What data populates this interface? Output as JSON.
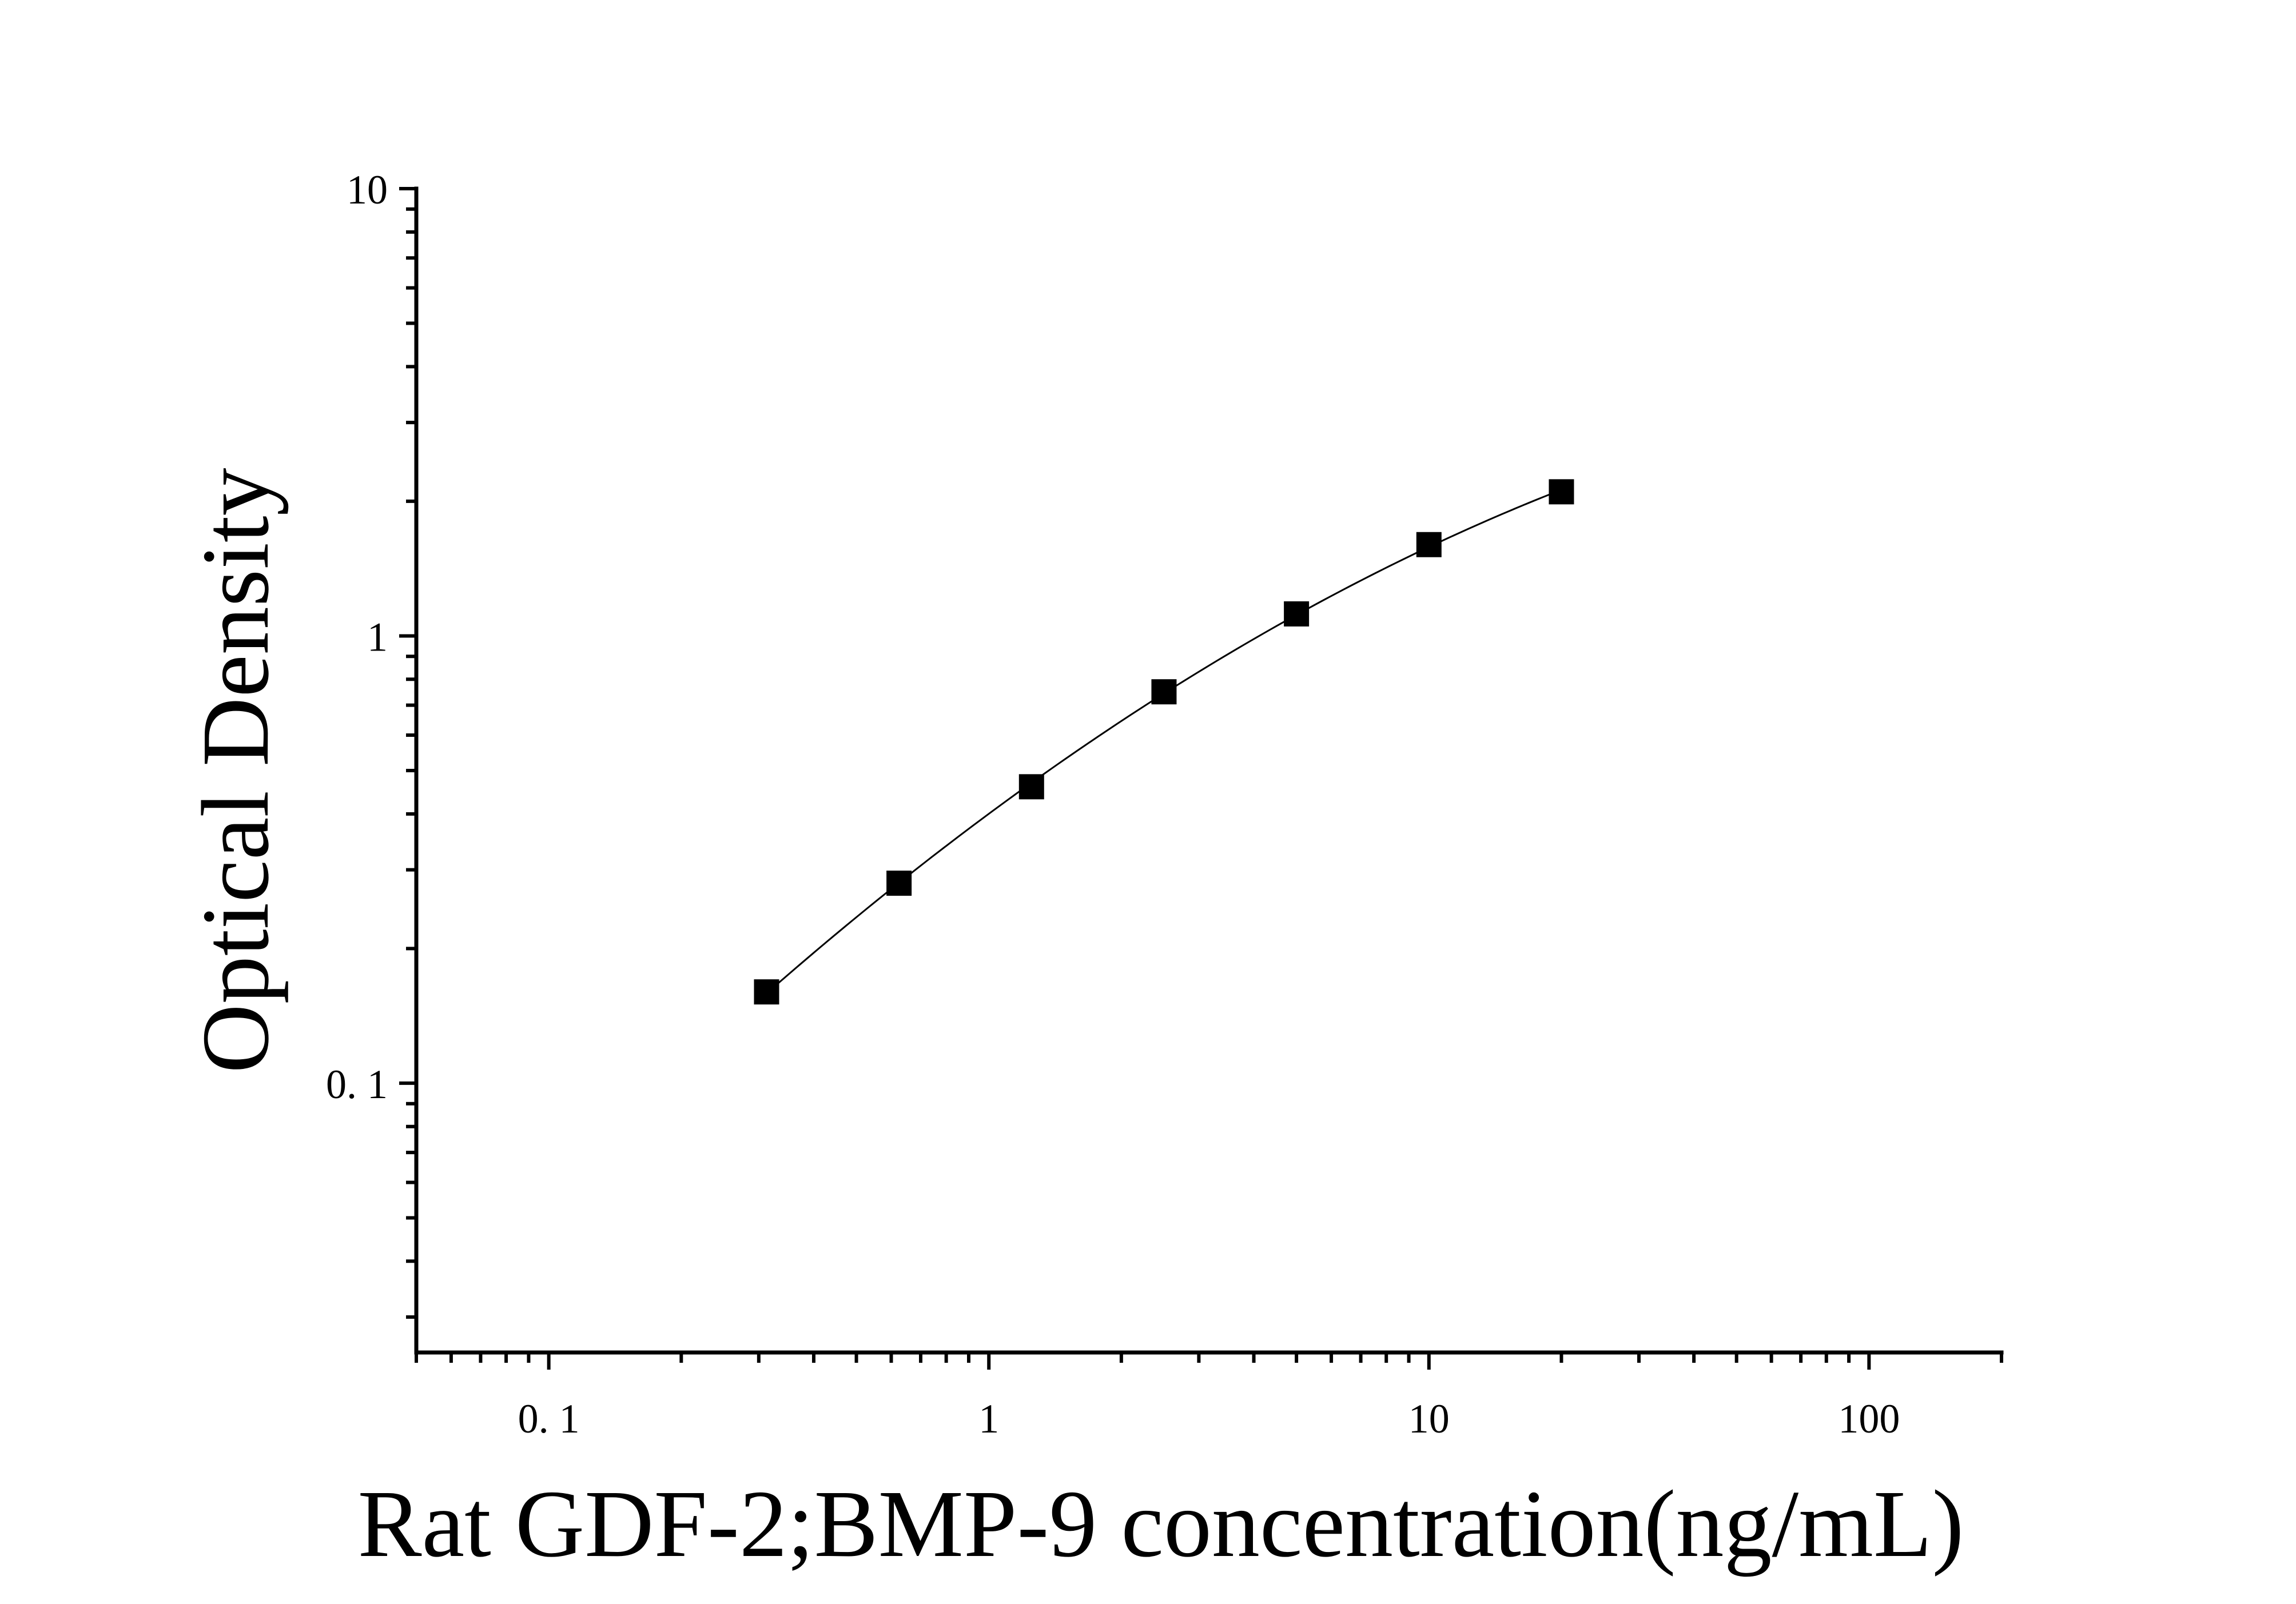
{
  "chart_data": {
    "type": "scatter",
    "title": "",
    "xlabel": "Rat GDF-2;BMP-9 concentration(ng/mL)",
    "ylabel": "Optical Density",
    "xscale": "log",
    "yscale": "log",
    "xlim": [
      0.05,
      200
    ],
    "ylim": [
      0.025,
      10
    ],
    "x_tick_labels": [
      "0. 1",
      "1",
      "10",
      "100"
    ],
    "y_tick_labels": [
      "0. 1",
      "1",
      "10"
    ],
    "grid": false,
    "legend": "none",
    "series": [
      {
        "marker": "square",
        "fit_line": true,
        "x": [
          0.3125,
          0.625,
          1.25,
          2.5,
          5,
          10,
          20
        ],
        "y": [
          0.16,
          0.28,
          0.46,
          0.75,
          1.12,
          1.6,
          2.1
        ]
      }
    ],
    "colors": {
      "marker": "#000000",
      "line": "#000000",
      "axis": "#000000"
    }
  }
}
